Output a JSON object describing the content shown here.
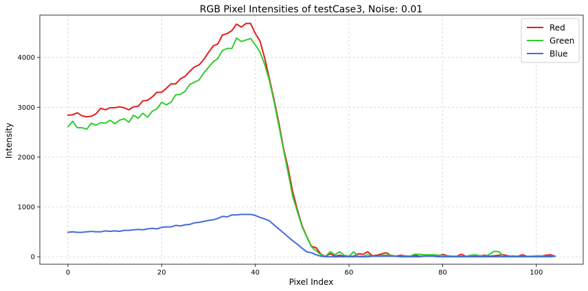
{
  "chart_data": {
    "type": "line",
    "title": "RGB Pixel Intensities of testCase3, Noise: 0.01",
    "xlabel": "Pixel Index",
    "ylabel": "Intensity",
    "xlim": [
      -6,
      110
    ],
    "ylim": [
      -150,
      4850
    ],
    "xticks": [
      0,
      20,
      40,
      60,
      80,
      100
    ],
    "yticks": [
      0,
      1000,
      2000,
      3000,
      4000
    ],
    "grid": true,
    "legend_position": "top-right",
    "series": [
      {
        "name": "Red",
        "color": "#e31a1c",
        "x": [
          0,
          1,
          2,
          3,
          4,
          5,
          6,
          7,
          8,
          9,
          10,
          11,
          12,
          13,
          14,
          15,
          16,
          17,
          18,
          19,
          20,
          21,
          22,
          23,
          24,
          25,
          26,
          27,
          28,
          29,
          30,
          31,
          32,
          33,
          34,
          35,
          36,
          37,
          38,
          39,
          40,
          41,
          42,
          43,
          44,
          45,
          46,
          47,
          48,
          49,
          50,
          51,
          52,
          53,
          54,
          55,
          56,
          57,
          58,
          59,
          60,
          61,
          62,
          63,
          64,
          65,
          66,
          67,
          68,
          69,
          70,
          71,
          72,
          73,
          74,
          75,
          76,
          77,
          78,
          79,
          80,
          81,
          82,
          83,
          84,
          85,
          86,
          87,
          88,
          89,
          90,
          91,
          92,
          93,
          94,
          95,
          96,
          97,
          98,
          99,
          100,
          101,
          102,
          103,
          104
        ],
        "values": [
          2840,
          2850,
          2890,
          2830,
          2810,
          2820,
          2870,
          2980,
          2950,
          2990,
          2990,
          3010,
          2990,
          2950,
          3010,
          3020,
          3130,
          3140,
          3210,
          3300,
          3300,
          3380,
          3470,
          3470,
          3570,
          3620,
          3720,
          3810,
          3850,
          3960,
          4100,
          4230,
          4270,
          4450,
          4480,
          4540,
          4670,
          4610,
          4680,
          4680,
          4480,
          4330,
          3990,
          3580,
          3160,
          2700,
          2190,
          1780,
          1300,
          940,
          620,
          400,
          210,
          180,
          50,
          10,
          60,
          10,
          30,
          10,
          10,
          10,
          60,
          50,
          100,
          20,
          30,
          60,
          80,
          20,
          10,
          30,
          20,
          10,
          30,
          10,
          10,
          30,
          20,
          10,
          50,
          20,
          10,
          10,
          50,
          10,
          10,
          10,
          20,
          30,
          10,
          20,
          30,
          40,
          20,
          10,
          10,
          40,
          10,
          10,
          10,
          10,
          30,
          40,
          10
        ]
      },
      {
        "name": "Green",
        "color": "#2ecc2e",
        "x": [
          0,
          1,
          2,
          3,
          4,
          5,
          6,
          7,
          8,
          9,
          10,
          11,
          12,
          13,
          14,
          15,
          16,
          17,
          18,
          19,
          20,
          21,
          22,
          23,
          24,
          25,
          26,
          27,
          28,
          29,
          30,
          31,
          32,
          33,
          34,
          35,
          36,
          37,
          38,
          39,
          40,
          41,
          42,
          43,
          44,
          45,
          46,
          47,
          48,
          49,
          50,
          51,
          52,
          53,
          54,
          55,
          56,
          57,
          58,
          59,
          60,
          61,
          62,
          63,
          64,
          65,
          66,
          67,
          68,
          69,
          70,
          71,
          72,
          73,
          74,
          75,
          76,
          77,
          78,
          79,
          80,
          81,
          82,
          83,
          84,
          85,
          86,
          87,
          88,
          89,
          90,
          91,
          92,
          93,
          94,
          95,
          96,
          97,
          98,
          99,
          100,
          101,
          102,
          103,
          104
        ],
        "values": [
          2610,
          2720,
          2590,
          2590,
          2560,
          2680,
          2640,
          2690,
          2680,
          2740,
          2670,
          2740,
          2770,
          2700,
          2840,
          2780,
          2880,
          2800,
          2920,
          2970,
          3100,
          3050,
          3100,
          3250,
          3260,
          3320,
          3460,
          3500,
          3550,
          3690,
          3800,
          3910,
          3980,
          4140,
          4180,
          4180,
          4390,
          4320,
          4350,
          4380,
          4250,
          4110,
          3860,
          3540,
          3120,
          2640,
          2160,
          1690,
          1210,
          900,
          600,
          390,
          200,
          120,
          40,
          10,
          100,
          40,
          100,
          30,
          10,
          100,
          10,
          10,
          40,
          10,
          10,
          30,
          30,
          30,
          10,
          10,
          20,
          10,
          50,
          50,
          40,
          40,
          40,
          30,
          30,
          10,
          10,
          10,
          10,
          10,
          30,
          40,
          20,
          10,
          50,
          110,
          100,
          10,
          10,
          20,
          10,
          10,
          10,
          10,
          20,
          20,
          10,
          10,
          10
        ]
      },
      {
        "name": "Blue",
        "color": "#4169d9",
        "x": [
          0,
          1,
          2,
          3,
          4,
          5,
          6,
          7,
          8,
          9,
          10,
          11,
          12,
          13,
          14,
          15,
          16,
          17,
          18,
          19,
          20,
          21,
          22,
          23,
          24,
          25,
          26,
          27,
          28,
          29,
          30,
          31,
          32,
          33,
          34,
          35,
          36,
          37,
          38,
          39,
          40,
          41,
          42,
          43,
          44,
          45,
          46,
          47,
          48,
          49,
          50,
          51,
          52,
          53,
          54,
          55,
          56,
          57,
          58,
          59,
          60,
          61,
          62,
          63,
          64,
          65,
          66,
          67,
          68,
          69,
          70,
          71,
          72,
          73,
          74,
          75,
          76,
          77,
          78,
          79,
          80,
          81,
          82,
          83,
          84,
          85,
          86,
          87,
          88,
          89,
          90,
          91,
          92,
          93,
          94,
          95,
          96,
          97,
          98,
          99,
          100,
          101,
          102,
          103,
          104
        ],
        "values": [
          490,
          500,
          490,
          490,
          500,
          510,
          500,
          500,
          520,
          510,
          520,
          510,
          530,
          530,
          540,
          550,
          540,
          560,
          570,
          560,
          590,
          600,
          600,
          630,
          620,
          640,
          650,
          680,
          690,
          710,
          730,
          740,
          770,
          810,
          800,
          840,
          840,
          850,
          850,
          850,
          830,
          790,
          760,
          720,
          640,
          560,
          480,
          400,
          320,
          250,
          170,
          100,
          80,
          40,
          10,
          0,
          0,
          0,
          0,
          0,
          0,
          0,
          0,
          0,
          0,
          10,
          10,
          10,
          10,
          10,
          10,
          0,
          0,
          0,
          0,
          0,
          10,
          10,
          10,
          0,
          0,
          0,
          0,
          0,
          0,
          0,
          0,
          0,
          0,
          0,
          0,
          0,
          0,
          0,
          0,
          0,
          0,
          0,
          0,
          0,
          0,
          0,
          0,
          0,
          10
        ]
      }
    ]
  }
}
